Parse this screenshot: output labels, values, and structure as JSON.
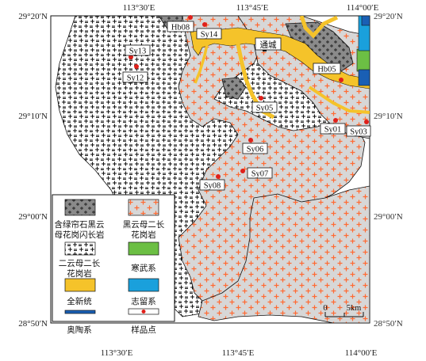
{
  "axes": {
    "top_longitudes": [
      "113°30′E",
      "113°45′E",
      "114°00′E"
    ],
    "bottom_longitudes": [
      "113°30′E",
      "113°45′E",
      "114°00′E"
    ],
    "left_latitudes": [
      "29°20′N",
      "29°10′N",
      "29°00′N",
      "28°50′N"
    ],
    "right_latitudes": [
      "29°20′N",
      "29°10′N",
      "29°00′N",
      "28°50′N"
    ]
  },
  "samples": [
    {
      "label": "Hb08"
    },
    {
      "label": "Sy14"
    },
    {
      "label": "Sy13"
    },
    {
      "label": "Sy12"
    },
    {
      "label": "Hb05"
    },
    {
      "label": "Sy05"
    },
    {
      "label": "Sy01"
    },
    {
      "label": "Sy03"
    },
    {
      "label": "Sy06"
    },
    {
      "label": "Sy07"
    },
    {
      "label": "Sy08"
    }
  ],
  "town": {
    "label": "通城"
  },
  "legend": {
    "items": [
      {
        "id": "hbl",
        "label_line1": "含绿帘石黑云",
        "label_line2": "母花岗闪长岩"
      },
      {
        "id": "bio",
        "label_line1": "黑云母二长",
        "label_line2": "花岗岩"
      },
      {
        "id": "two",
        "label_line1": "二云母二长",
        "label_line2": "花岗岩"
      },
      {
        "id": "cam",
        "label_line1": "寒武系",
        "color": "#6cbf44"
      },
      {
        "id": "hol",
        "label_line1": "全新统",
        "color": "#f5c32a"
      },
      {
        "id": "sil",
        "label_line1": "志留系",
        "color": "#1aa0dc"
      },
      {
        "id": "ord",
        "label_line1": "奥陶系",
        "color": "#1a5fb4"
      },
      {
        "id": "smp",
        "label_line1": "样品点"
      }
    ]
  },
  "scale": {
    "zero": "0",
    "label": "5km"
  },
  "colors": {
    "granite_fill": "#d7d7d7",
    "plus_color": "#ff6a33",
    "sample_dot": "#e0201a",
    "quaternary": "#f5c32a",
    "hbl_fill": "#8a8a8a"
  }
}
